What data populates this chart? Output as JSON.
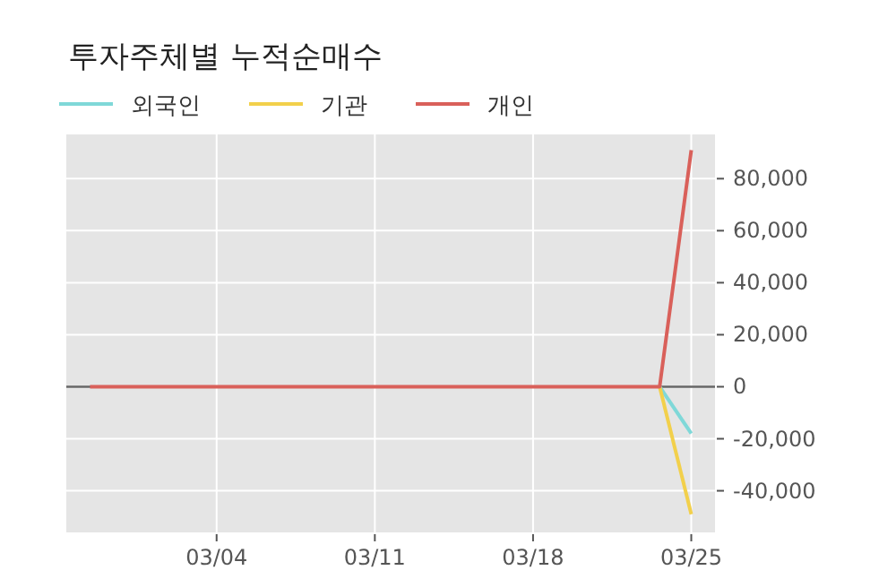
{
  "chart_data": {
    "type": "line",
    "title": "투자주체별 누적순매수",
    "categories": [
      null,
      null,
      null,
      null,
      "03/04",
      null,
      null,
      null,
      null,
      "03/11",
      null,
      null,
      null,
      null,
      "03/18",
      null,
      null,
      null,
      null,
      "03/25"
    ],
    "series": [
      {
        "name": "외국인",
        "color": "#7fd8d8",
        "values": [
          null,
          null,
          null,
          null,
          null,
          null,
          null,
          null,
          null,
          null,
          null,
          null,
          null,
          null,
          null,
          null,
          null,
          null,
          0,
          -18000
        ]
      },
      {
        "name": "기관",
        "color": "#f2d04b",
        "values": [
          null,
          null,
          null,
          null,
          null,
          null,
          null,
          null,
          null,
          null,
          null,
          null,
          null,
          null,
          null,
          null,
          null,
          null,
          0,
          -49000
        ]
      },
      {
        "name": "개인",
        "color": "#d9605a",
        "values": [
          0,
          0,
          0,
          0,
          0,
          0,
          0,
          0,
          0,
          0,
          0,
          0,
          0,
          0,
          0,
          0,
          0,
          0,
          0,
          91000
        ]
      }
    ],
    "ylim": [
      -56000,
      97000
    ],
    "yticks": [
      {
        "value": -40000,
        "label": "-40,000"
      },
      {
        "value": -20000,
        "label": "-20,000"
      },
      0,
      {
        "value": 20000,
        "label": "20,000"
      },
      {
        "value": 40000,
        "label": "40,000"
      },
      {
        "value": 60000,
        "label": "60,000"
      },
      {
        "value": 80000,
        "label": "80,000"
      }
    ],
    "ref_lines": [
      {
        "axis": "y",
        "value": 0,
        "color": "#666666"
      }
    ],
    "grid": true,
    "legend": "top",
    "marker": "none",
    "line_style": "solid"
  }
}
